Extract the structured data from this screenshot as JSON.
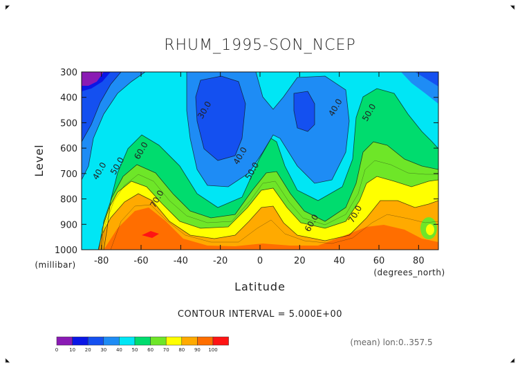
{
  "title": "RHUM_1995-SON_NCEP",
  "chart_data": {
    "type": "contour",
    "title": "RHUM_1995-SON_NCEP",
    "xlabel": "Latitude",
    "x_unit": "(degrees_north)",
    "ylabel": "Level",
    "y_unit": "(millibar)",
    "xlim": [
      -90,
      90
    ],
    "ylim": [
      1000,
      300
    ],
    "x_ticks": [
      -80,
      -60,
      -40,
      -20,
      0,
      20,
      40,
      60,
      80
    ],
    "y_ticks": [
      300,
      400,
      500,
      600,
      700,
      800,
      900,
      1000
    ],
    "contour_interval_text": "CONTOUR INTERVAL = 5.000E+00",
    "footnote": "(mean) lon:0..357.5",
    "contour_labels": [
      {
        "text": "30.0",
        "x": -28,
        "y": 450
      },
      {
        "text": "40.0",
        "x": 38,
        "y": 440
      },
      {
        "text": "50.0",
        "x": 55,
        "y": 460
      },
      {
        "text": "40.0",
        "x": -10,
        "y": 630
      },
      {
        "text": "50.0",
        "x": -4,
        "y": 690
      },
      {
        "text": "60.0",
        "x": -60,
        "y": 610
      },
      {
        "text": "40.0",
        "x": -81,
        "y": 690
      },
      {
        "text": "50.0",
        "x": -72,
        "y": 670
      },
      {
        "text": "70.0",
        "x": -52,
        "y": 800
      },
      {
        "text": "60.0",
        "x": 26,
        "y": 895
      },
      {
        "text": "70.0",
        "x": 48,
        "y": 860
      }
    ],
    "colorbar": {
      "levels": [
        0,
        10,
        20,
        30,
        40,
        50,
        60,
        70,
        80,
        90,
        100
      ],
      "colors": [
        "#8a1ab4",
        "#0a16e6",
        "#1450f0",
        "#1e8cf5",
        "#00e6f5",
        "#00dc6e",
        "#6ee628",
        "#ffff00",
        "#ffaa00",
        "#ff6e00",
        "#ff1414"
      ]
    }
  }
}
